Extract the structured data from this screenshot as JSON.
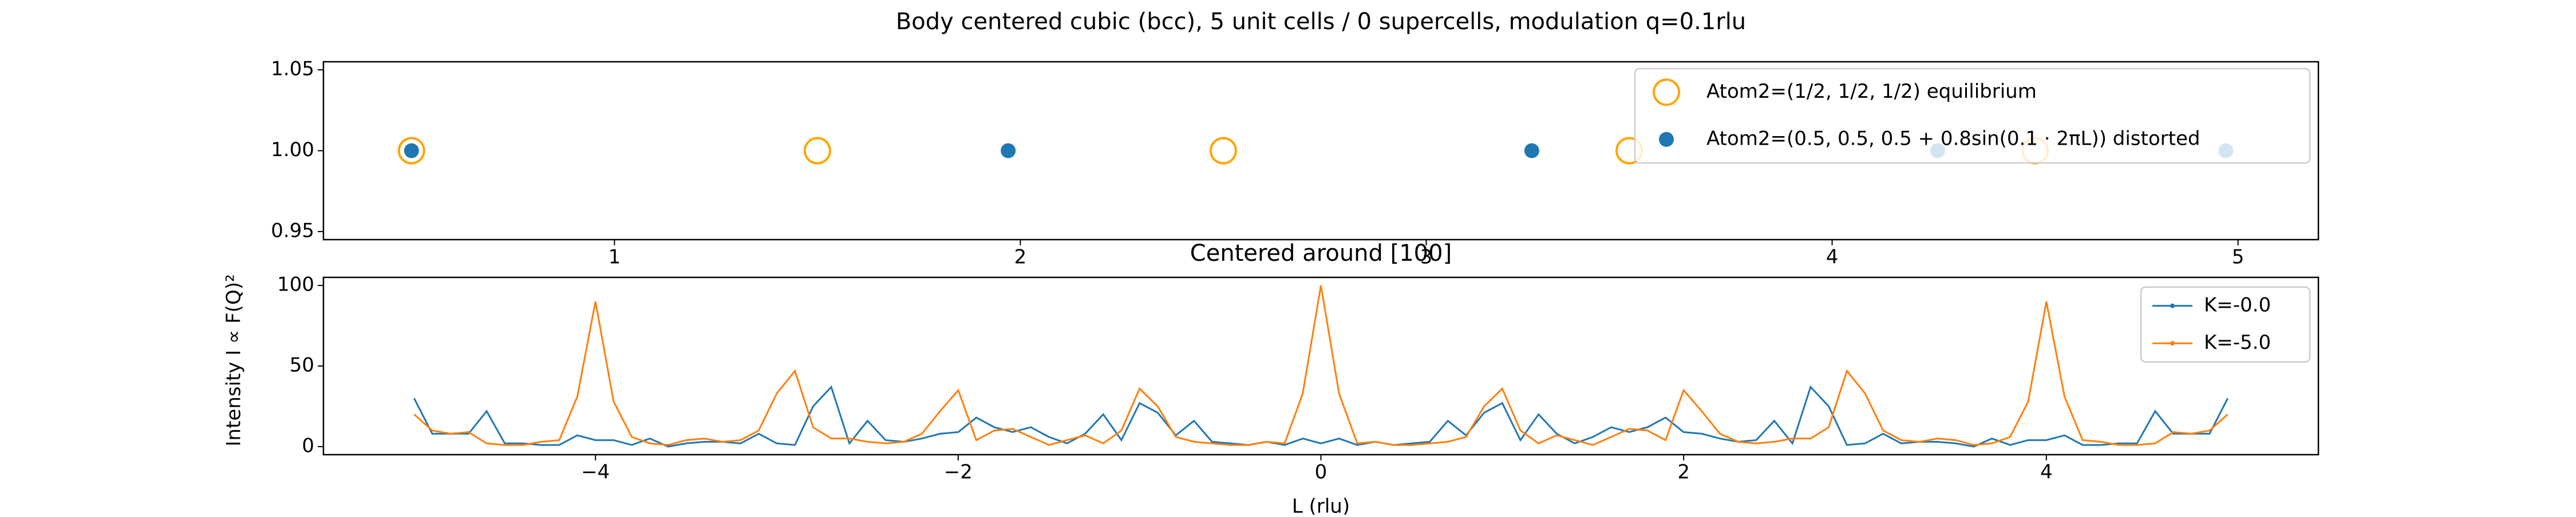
{
  "chart_data": [
    {
      "type": "scatter",
      "title": "Body centered cubic (bcc), 5 unit cells / 0 supercells, modulation q=0.1rlu",
      "xlim": [
        0.283,
        5.198
      ],
      "xticks": [
        1,
        2,
        3,
        4,
        5
      ],
      "ylim": [
        0.945,
        1.055
      ],
      "yticks": [
        {
          "value": 0.95,
          "label": "0.95"
        },
        {
          "value": 1.0,
          "label": "1.00"
        },
        {
          "value": 1.05,
          "label": "1.05"
        }
      ],
      "legend": "upper right",
      "series": [
        {
          "name": "Atom2=(1/2, 1/2, 1/2) equilibrium",
          "color": "#ffa500",
          "marker": "open",
          "x": [
            0.5,
            1.5,
            2.5,
            3.5,
            4.5
          ],
          "values": [
            1,
            1,
            1,
            1,
            1
          ]
        },
        {
          "name": "Atom2=(0.5, 0.5, 0.5 + 0.8sin(0.1 · 2πL)) distorted",
          "color": "#1f77b4",
          "marker": "filled",
          "x": [
            0.5,
            1.97,
            3.26,
            4.26,
            4.97
          ],
          "values": [
            1,
            1,
            1,
            1,
            1
          ]
        }
      ]
    },
    {
      "type": "line",
      "title": "Centered around [100]",
      "xlabel": "L (rlu)",
      "ylabel": "Intensity I ∝ F(Q)²",
      "xlim": [
        -5.5,
        5.5
      ],
      "xticks": [
        {
          "value": -4,
          "label": "−4"
        },
        {
          "value": -2,
          "label": "−2"
        },
        0,
        2,
        4
      ],
      "ylim": [
        -5,
        105
      ],
      "yticks": [
        0,
        50,
        100
      ],
      "legend": "upper right",
      "x": [
        -5,
        -4.9,
        -4.8,
        -4.7,
        -4.6,
        -4.5,
        -4.4,
        -4.3,
        -4.2,
        -4.1,
        -4,
        -3.9,
        -3.8,
        -3.7,
        -3.6,
        -3.5,
        -3.4,
        -3.3,
        -3.2,
        -3.1,
        -3,
        -2.9,
        -2.8,
        -2.7,
        -2.6,
        -2.5,
        -2.4,
        -2.3,
        -2.2,
        -2.1,
        -2,
        -1.9,
        -1.8,
        -1.7,
        -1.6,
        -1.5,
        -1.4,
        -1.3,
        -1.2,
        -1.1,
        -1,
        -0.9,
        -0.8,
        -0.7,
        -0.6,
        -0.5,
        -0.4,
        -0.3,
        -0.2,
        -0.1,
        0,
        0.1,
        0.2,
        0.3,
        0.4,
        0.5,
        0.6,
        0.7,
        0.8,
        0.9,
        1,
        1.1,
        1.2,
        1.3,
        1.4,
        1.5,
        1.6,
        1.7,
        1.8,
        1.9,
        2,
        2.1,
        2.2,
        2.3,
        2.4,
        2.5,
        2.6,
        2.7,
        2.8,
        2.9,
        3,
        3.1,
        3.2,
        3.3,
        3.4,
        3.5,
        3.6,
        3.7,
        3.8,
        3.9,
        4,
        4.1,
        4.2,
        4.3,
        4.4,
        4.5,
        4.6,
        4.7,
        4.8,
        4.9,
        5
      ],
      "series": [
        {
          "name": "K=-0.0",
          "color": "#1f77b4",
          "values": [
            30,
            8,
            8,
            8,
            22,
            2,
            2,
            1,
            1,
            7,
            4,
            4,
            1,
            5,
            0,
            2,
            3,
            3,
            2,
            8,
            2,
            1,
            25,
            37,
            2,
            16,
            4,
            3,
            5,
            8,
            9,
            18,
            12,
            9,
            12,
            6,
            2,
            8,
            20,
            4,
            27,
            21,
            7,
            16,
            3,
            2,
            1,
            3,
            1,
            5,
            2,
            5,
            1,
            3,
            1,
            2,
            3,
            16,
            7,
            21,
            27,
            4,
            20,
            8,
            2,
            6,
            12,
            9,
            12,
            18,
            9,
            8,
            5,
            3,
            4,
            16,
            2,
            37,
            25,
            1,
            2,
            8,
            2,
            3,
            3,
            2,
            0,
            5,
            1,
            4,
            4,
            7,
            1,
            1,
            2,
            2,
            22,
            8,
            8,
            8,
            30
          ]
        },
        {
          "name": "K=-5.0",
          "color": "#ff7f0e",
          "values": [
            20,
            10,
            8,
            9,
            2,
            1,
            1,
            3,
            4,
            31,
            90,
            28,
            6,
            2,
            1,
            4,
            5,
            3,
            4,
            10,
            33,
            47,
            12,
            5,
            5,
            3,
            2,
            3,
            8,
            22,
            35,
            4,
            10,
            11,
            6,
            1,
            4,
            7,
            2,
            10,
            36,
            25,
            6,
            3,
            2,
            1,
            1,
            3,
            2,
            33,
            100,
            33,
            2,
            3,
            1,
            1,
            2,
            3,
            6,
            25,
            36,
            10,
            2,
            7,
            4,
            1,
            6,
            11,
            10,
            4,
            35,
            22,
            8,
            3,
            2,
            3,
            5,
            5,
            12,
            47,
            33,
            10,
            4,
            3,
            5,
            4,
            1,
            2,
            6,
            28,
            90,
            31,
            4,
            3,
            1,
            1,
            2,
            9,
            8,
            10,
            20
          ]
        }
      ]
    }
  ]
}
